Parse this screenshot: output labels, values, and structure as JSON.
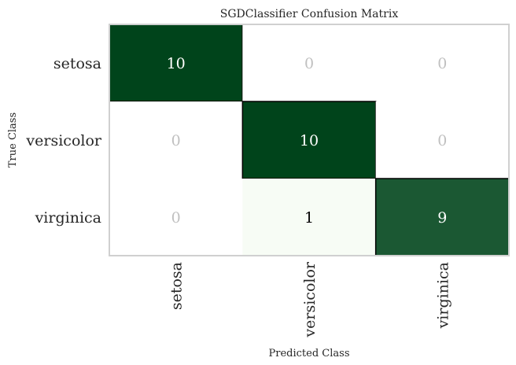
{
  "chart_data": {
    "type": "heatmap",
    "title": "SGDClassifier Confusion Matrix",
    "xlabel": "Predicted Class",
    "ylabel": "True Class",
    "classes": [
      "setosa",
      "versicolor",
      "virginica"
    ],
    "matrix": [
      [
        10,
        0,
        0
      ],
      [
        0,
        10,
        0
      ],
      [
        0,
        1,
        9
      ]
    ],
    "cell_labels": [
      [
        "10",
        "0",
        "0"
      ],
      [
        "0",
        "10",
        "0"
      ],
      [
        "0",
        "1",
        "9"
      ]
    ],
    "colormap": "Greens",
    "colors": {
      "max": "#00441b",
      "min_nonzero": "#f7fcf5",
      "zero": "#ffffff",
      "text_dark_bg": "#ffffff",
      "text_light_bg": "#000000",
      "text_zero": "#c0c0c0",
      "diagonal_border": "#000000",
      "frame": "#d0d0d0"
    },
    "grid": false
  }
}
